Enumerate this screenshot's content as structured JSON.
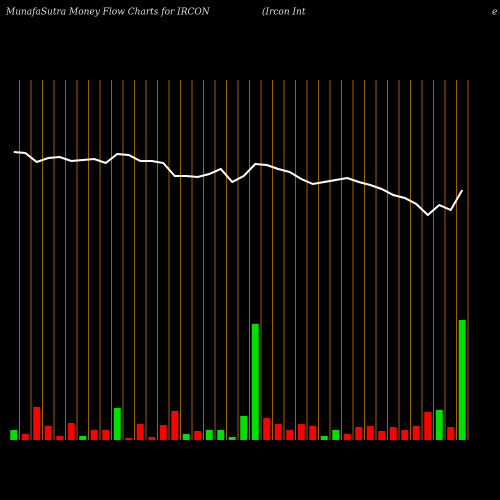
{
  "chart_data": {
    "type": "money-flow",
    "title": "MunafaSutra  Money Flow  Charts for IRCON",
    "subtitle": "(Ircon  Int",
    "title_right": "e",
    "ylim": [
      0,
      380
    ],
    "line_color": "#ffffff",
    "grid_color": "#c87800",
    "line_values": [
      288,
      287,
      278,
      282,
      283,
      279,
      280,
      281,
      277,
      286,
      285,
      279,
      279,
      277,
      264,
      264,
      263,
      266,
      271,
      258,
      264,
      276,
      275,
      271,
      268,
      261,
      256,
      258,
      260,
      262,
      258,
      255,
      251,
      245,
      242,
      236,
      225,
      235,
      230,
      250
    ],
    "bar_values": [
      10,
      6,
      33,
      14,
      4,
      17,
      4,
      10,
      10,
      32,
      2,
      16,
      3,
      15,
      29,
      6,
      9,
      10,
      10,
      3,
      24,
      116,
      22,
      16,
      10,
      16,
      14,
      4,
      10,
      6,
      13,
      14,
      9,
      13,
      10,
      14,
      28,
      30,
      13,
      120
    ],
    "bar_colors": [
      "#00e000",
      "#ff0000",
      "#ff0000",
      "#ff0000",
      "#ff0000",
      "#ff0000",
      "#00e000",
      "#ff0000",
      "#ff0000",
      "#00e000",
      "#ff0000",
      "#ff0000",
      "#ff0000",
      "#ff0000",
      "#ff0000",
      "#00e000",
      "#ff0000",
      "#00e000",
      "#00e000",
      "#00e000",
      "#00e000",
      "#00e000",
      "#ff0000",
      "#ff0000",
      "#ff0000",
      "#ff0000",
      "#ff0000",
      "#00e000",
      "#00e000",
      "#ff0000",
      "#ff0000",
      "#ff0000",
      "#ff0000",
      "#ff0000",
      "#ff0000",
      "#ff0000",
      "#ff0000",
      "#00e000",
      "#ff0000",
      "#00e000"
    ]
  }
}
